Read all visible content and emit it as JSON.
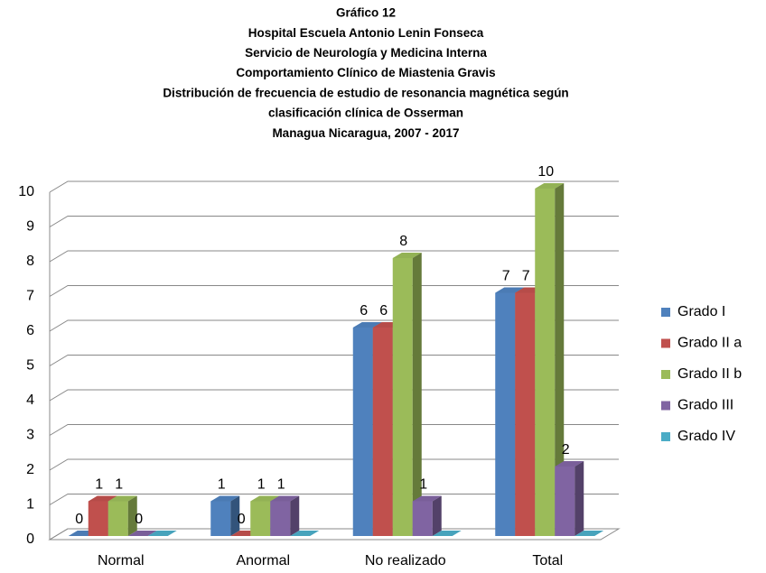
{
  "chart_data": {
    "type": "bar3d",
    "title": [
      "Gráfico 12",
      "Hospital Escuela Antonio Lenin Fonseca",
      "Servicio de Neurología y Medicina Interna",
      "Comportamiento Clínico de Miastenia Gravis",
      "Distribución  de frecuencia de estudio de resonancia magnética según",
      "clasificación clínica de Osserman",
      "Managua Nicaragua, 2007 - 2017"
    ],
    "categories": [
      "Normal",
      "Anormal",
      "No realizado",
      "Total"
    ],
    "series": [
      {
        "name": "Grado I",
        "color": "#4f81bd",
        "values": [
          0,
          1,
          6,
          7
        ],
        "labels": true
      },
      {
        "name": "Grado II a",
        "color": "#c0504d",
        "values": [
          1,
          0,
          6,
          7
        ],
        "labels": true
      },
      {
        "name": "Grado II b",
        "color": "#9bbb59",
        "values": [
          1,
          1,
          8,
          10
        ],
        "labels": true
      },
      {
        "name": "Grado III",
        "color": "#8064a2",
        "values": [
          0,
          1,
          1,
          2
        ],
        "labels": true
      },
      {
        "name": "Grado IV",
        "color": "#4bacc6",
        "values": [
          0,
          0,
          0,
          0
        ],
        "labels": false
      }
    ],
    "ylim": [
      0,
      10
    ],
    "yticks": [
      0,
      1,
      2,
      3,
      4,
      5,
      6,
      7,
      8,
      9,
      10
    ],
    "grid": true,
    "legend": "right"
  }
}
